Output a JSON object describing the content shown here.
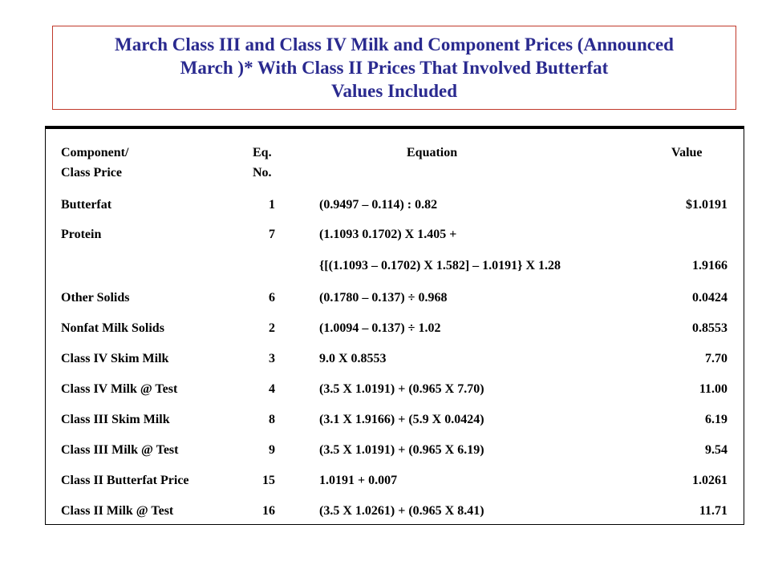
{
  "title": {
    "lines": [
      "March Class III and Class IV Milk and Component Prices (Announced",
      "March )* With Class II Prices That Involved Butterfat",
      "Values Included"
    ]
  },
  "table": {
    "headers": {
      "component_line1": "Component/",
      "component_line2": "Class Price",
      "eq_line1": "Eq.",
      "eq_line2": "No.",
      "equation": "Equation",
      "value": "Value"
    },
    "rows": [
      {
        "component": "Butterfat",
        "eq": "1",
        "equation": "(0.9497 – 0.114) : 0.82",
        "value": "$1.0191"
      },
      {
        "component": "Protein",
        "eq": "7",
        "equation": "(1.1093   0.1702) X 1.405 +",
        "value": ""
      },
      {
        "component": "",
        "eq": "",
        "equation": "{[(1.1093 –  0.1702) X 1.582] – 1.0191} X 1.28",
        "value": "1.9166"
      },
      {
        "component": "Other Solids",
        "eq": "6",
        "equation": "(0.1780 –  0.137) ÷ 0.968",
        "value": "0.0424"
      },
      {
        "component": "Nonfat Milk Solids",
        "eq": "2",
        "equation": "(1.0094 –  0.137) ÷ 1.02",
        "value": "0.8553"
      },
      {
        "component": "Class IV Skim Milk",
        "eq": "3",
        "equation": "9.0 X 0.8553",
        "value": "7.70"
      },
      {
        "component": "Class IV Milk @ Test",
        "eq": "4",
        "equation": "(3.5 X 1.0191) + (0.965 X 7.70)",
        "value": "11.00"
      },
      {
        "component": "Class III Skim Milk",
        "eq": "8",
        "equation": "(3.1 X 1.9166) + (5.9 X 0.0424)",
        "value": "6.19"
      },
      {
        "component": "Class III Milk @ Test",
        "eq": "9",
        "equation": "(3.5 X 1.0191) + (0.965 X 6.19)",
        "value": "9.54"
      },
      {
        "component": "Class II Butterfat Price",
        "eq": "15",
        "equation": "1.0191 + 0.007",
        "value": "1.0261"
      },
      {
        "component": "Class II Milk @ Test",
        "eq": "16",
        "equation": "(3.5 X 1.0261) + (0.965 X 8.41)",
        "value": "11.71"
      }
    ]
  }
}
